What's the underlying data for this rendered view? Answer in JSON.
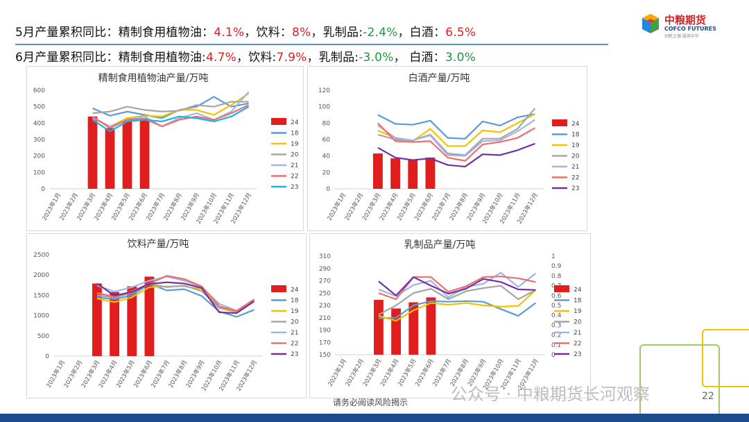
{
  "headline1": {
    "prefix": "5月产量累积同比：精制食用植物油：",
    "v1": "4.1%",
    "sep1": "，饮料：",
    "v2": "8%",
    "sep2": "，乳制品:",
    "v3": "-2.4%",
    "sep3": "，白酒：",
    "v4": "6.5%"
  },
  "headline2": {
    "prefix": "6月产量累积同比：精制食用植物油:",
    "v1": "4.7%",
    "sep1": "，饮料:",
    "v2": "7.9%",
    "sep2": "，乳制品:",
    "v3": "-3.0%",
    "sep3": "，  白酒：",
    "v4": "3.0%"
  },
  "logo": {
    "cn": "中粮期货",
    "en": "COFCO FUTURES",
    "tag": "创新之源 服务中华"
  },
  "footer": {
    "disclaimer": "请务必阅读风险揭示",
    "watermark": "公众号 · 中粮期货长河观察",
    "page": "22"
  },
  "colors": {
    "red_pos": "#e02020",
    "green_neg": "#1a9a3c",
    "bar24": "#e01e1e",
    "s18": "#5b9bd5",
    "s19": "#f2c200",
    "s20": "#a5a5a5",
    "s21": "#9eb6e4",
    "s22": "#f26c6c",
    "s23": "#16b4e6",
    "s23_purple": "#7030a0"
  },
  "chart_data": [
    {
      "type": "bar",
      "title": "精制食用植物油产量/万吨",
      "categories": [
        "2023年1月",
        "2023年2月",
        "2023年3月",
        "2023年4月",
        "2023年5月",
        "2023年6月",
        "2023年7月",
        "2023年8月",
        "2023年9月",
        "2023年10月",
        "2023年11月",
        "2023年12月"
      ],
      "ylim": [
        0,
        600
      ],
      "yticks": [
        0,
        100,
        200,
        300,
        400,
        500,
        600
      ],
      "bar_series": {
        "name": "24",
        "values": [
          null,
          null,
          440,
          370,
          410,
          430,
          null,
          null,
          null,
          null,
          null,
          null
        ]
      },
      "series": [
        {
          "name": "18",
          "values": [
            null,
            null,
            490,
            445,
            470,
            450,
            430,
            480,
            500,
            560,
            500,
            520
          ]
        },
        {
          "name": "19",
          "values": [
            null,
            null,
            435,
            380,
            430,
            445,
            440,
            480,
            480,
            450,
            510,
            580
          ]
        },
        {
          "name": "20",
          "values": [
            null,
            null,
            460,
            470,
            500,
            480,
            470,
            475,
            510,
            500,
            530,
            530
          ]
        },
        {
          "name": "21",
          "values": [
            null,
            null,
            430,
            380,
            420,
            440,
            380,
            430,
            460,
            420,
            470,
            590
          ]
        },
        {
          "name": "22",
          "values": [
            null,
            null,
            440,
            370,
            420,
            425,
            380,
            420,
            440,
            420,
            460,
            510
          ]
        },
        {
          "name": "23",
          "values": [
            null,
            null,
            420,
            350,
            410,
            420,
            410,
            440,
            430,
            410,
            440,
            500
          ]
        }
      ]
    },
    {
      "type": "bar",
      "title": "白酒产量/万吨",
      "categories": [
        "2023年1月",
        "2023年2月",
        "2023年3月",
        "2023年4月",
        "2023年5月",
        "2023年6月",
        "2023年7月",
        "2023年8月",
        "2023年9月",
        "2023年10月",
        "2023年11月",
        "2023年12月"
      ],
      "ylim": [
        0,
        120
      ],
      "yticks": [
        0,
        20,
        40,
        60,
        80,
        100,
        120
      ],
      "bar_series": {
        "name": "24",
        "values": [
          null,
          null,
          43,
          37,
          35,
          38,
          null,
          null,
          null,
          null,
          null,
          null
        ]
      },
      "series": [
        {
          "name": "18",
          "values": [
            null,
            null,
            90,
            79,
            78,
            83,
            62,
            61,
            82,
            77,
            87,
            91
          ]
        },
        {
          "name": "19",
          "values": [
            null,
            null,
            71,
            62,
            58,
            73,
            52,
            52,
            71,
            69,
            80,
            91
          ]
        },
        {
          "name": "20",
          "values": [
            null,
            null,
            66,
            60,
            59,
            66,
            43,
            41,
            61,
            61,
            73,
            98
          ]
        },
        {
          "name": "21",
          "values": [
            null,
            null,
            77,
            62,
            59,
            65,
            41,
            40,
            58,
            59,
            70,
            84
          ]
        },
        {
          "name": "22",
          "values": [
            null,
            null,
            80,
            58,
            57,
            58,
            38,
            34,
            54,
            57,
            62,
            74
          ]
        },
        {
          "name": "23",
          "values": [
            null,
            null,
            50,
            38,
            35,
            37,
            29,
            27,
            42,
            41,
            47,
            55
          ]
        }
      ]
    },
    {
      "type": "bar",
      "title": "饮料产量/万吨",
      "categories": [
        "2023年1月",
        "2023年2月",
        "2023年3月",
        "2023年4月",
        "2023年5月",
        "2023年6月",
        "2023年7月",
        "2023年8月",
        "2023年9月",
        "2023年10月",
        "2023年11月",
        "2023年12月"
      ],
      "ylim": [
        0,
        2500
      ],
      "yticks": [
        0,
        500,
        1000,
        1500,
        2000,
        2500
      ],
      "bar_series": {
        "name": "24",
        "values": [
          null,
          null,
          1790,
          1580,
          1720,
          1960,
          null,
          null,
          null,
          null,
          null,
          null
        ]
      },
      "series": [
        {
          "name": "18",
          "values": [
            null,
            null,
            1450,
            1400,
            1500,
            1780,
            1620,
            1650,
            1480,
            1100,
            970,
            1140
          ]
        },
        {
          "name": "19",
          "values": [
            null,
            null,
            1420,
            1330,
            1450,
            1700,
            1720,
            1720,
            1650,
            1180,
            1080,
            1380
          ]
        },
        {
          "name": "20",
          "values": [
            null,
            null,
            1500,
            1440,
            1560,
            1780,
            1700,
            1740,
            1600,
            1190,
            1110,
            1390
          ]
        },
        {
          "name": "21",
          "values": [
            null,
            null,
            1740,
            1590,
            1700,
            1860,
            1960,
            1860,
            1700,
            1290,
            1120,
            1400
          ]
        },
        {
          "name": "22",
          "values": [
            null,
            null,
            1560,
            1460,
            1600,
            1790,
            1980,
            1900,
            1720,
            1230,
            1110,
            1400
          ]
        },
        {
          "name": "23",
          "values": [
            null,
            null,
            1790,
            1490,
            1580,
            1780,
            1820,
            1790,
            1680,
            1080,
            1060,
            1350
          ]
        }
      ]
    },
    {
      "type": "bar",
      "title": "乳制品产量/万吨",
      "categories": [
        "2023年1月",
        "2023年2月",
        "2023年3月",
        "2023年4月",
        "2023年5月",
        "2023年6月",
        "2023年7月",
        "2023年8月",
        "2023年9月",
        "2023年10月",
        "2023年11月",
        "2023年12月"
      ],
      "ylim": [
        150,
        310
      ],
      "yticks": [
        150,
        170,
        190,
        210,
        230,
        250,
        270,
        290,
        310
      ],
      "y2lim": [
        0,
        1
      ],
      "y2ticks": [
        0,
        0.1,
        0.2,
        0.3,
        0.4,
        0.5,
        0.6,
        0.7,
        0.8,
        0.9,
        1
      ],
      "bar_series": {
        "name": "24",
        "values": [
          null,
          null,
          239,
          225,
          235,
          243,
          null,
          null,
          null,
          null,
          null,
          null
        ]
      },
      "series": [
        {
          "name": "18",
          "values": [
            null,
            null,
            209,
            210,
            230,
            237,
            236,
            237,
            236,
            224,
            213,
            234
          ]
        },
        {
          "name": "19",
          "values": [
            null,
            null,
            213,
            205,
            222,
            234,
            231,
            234,
            230,
            228,
            229,
            255
          ]
        },
        {
          "name": "20",
          "values": [
            null,
            null,
            215,
            230,
            250,
            257,
            240,
            253,
            258,
            262,
            240,
            255
          ]
        },
        {
          "name": "21",
          "values": [
            null,
            null,
            256,
            245,
            263,
            270,
            243,
            260,
            265,
            283,
            260,
            282
          ]
        },
        {
          "name": "22",
          "values": [
            null,
            null,
            250,
            240,
            276,
            276,
            252,
            261,
            276,
            277,
            274,
            268
          ]
        },
        {
          "name": "23",
          "values": [
            null,
            null,
            269,
            246,
            276,
            262,
            249,
            257,
            273,
            268,
            256,
            255
          ]
        }
      ]
    }
  ]
}
